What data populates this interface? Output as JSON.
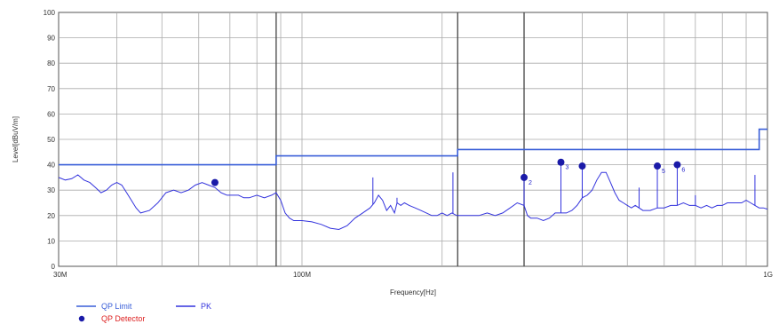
{
  "chart_data": {
    "type": "line",
    "title": "",
    "xlabel": "Frequency[Hz]",
    "ylabel": "Level[dBuV/m]",
    "x_scale": "log",
    "xlim": [
      30,
      1000
    ],
    "ylim": [
      0,
      100
    ],
    "grid": true,
    "y_ticks": [
      "0",
      "10",
      "20",
      "30",
      "40",
      "50",
      "60",
      "70",
      "80",
      "90",
      "100"
    ],
    "x_ticks": [
      {
        "value": 30,
        "label": "30M"
      },
      {
        "value": 100,
        "label": "100M"
      },
      {
        "value": 1000,
        "label": "1G"
      }
    ],
    "vertical_marks": [
      88,
      216,
      300
    ],
    "colors": {
      "limit": "#3a5fd8",
      "pk": "#3333dd",
      "qp": "#1a1aa8",
      "grid": "#aaaaaa",
      "legend_qp_text": "#dd2222"
    },
    "series": [
      {
        "name": "QP Limit",
        "kind": "step",
        "x": [
          30,
          88,
          88,
          216,
          216,
          960,
          960,
          1000
        ],
        "y": [
          40,
          40,
          43.5,
          43.5,
          46,
          46,
          54,
          54
        ]
      },
      {
        "name": "PK",
        "kind": "line",
        "x": [
          30,
          31,
          32,
          33,
          34,
          35,
          36,
          37,
          38,
          39,
          40,
          41,
          42,
          43,
          44,
          45,
          47,
          49,
          51,
          53,
          55,
          57,
          59,
          61,
          63,
          65,
          67,
          69,
          71,
          73,
          75,
          77,
          80,
          83,
          86,
          88,
          90,
          92,
          94,
          96,
          100,
          105,
          110,
          115,
          120,
          125,
          130,
          135,
          140,
          143,
          146,
          149,
          152,
          155,
          158,
          160,
          163,
          166,
          170,
          175,
          180,
          185,
          190,
          195,
          200,
          205,
          210,
          215,
          220,
          230,
          240,
          250,
          260,
          270,
          280,
          290,
          300,
          305,
          310,
          320,
          330,
          340,
          350,
          360,
          370,
          380,
          390,
          400,
          410,
          420,
          430,
          440,
          450,
          460,
          470,
          480,
          490,
          500,
          510,
          520,
          540,
          560,
          580,
          600,
          620,
          640,
          660,
          680,
          700,
          720,
          740,
          760,
          780,
          800,
          820,
          840,
          860,
          880,
          900,
          920,
          940,
          960,
          980,
          1000
        ],
        "y": [
          35,
          34,
          34.5,
          36,
          34,
          33,
          31,
          29,
          30,
          32,
          33,
          32,
          29,
          26,
          23,
          21,
          22,
          25,
          29,
          30,
          29,
          30,
          32,
          33,
          32,
          31,
          29,
          28,
          28,
          28,
          27,
          27,
          28,
          27,
          28,
          29,
          26,
          21,
          19,
          18,
          18,
          17.5,
          16.5,
          15,
          14.5,
          16,
          19,
          21,
          23,
          25,
          28,
          26,
          22,
          24,
          21,
          25,
          24,
          25,
          24,
          23,
          22,
          21,
          20,
          20,
          21,
          20,
          21,
          20,
          20,
          20,
          20,
          21,
          20,
          21,
          23,
          25,
          24,
          20,
          19,
          19,
          18,
          19,
          21,
          21,
          21,
          22,
          24,
          27,
          28,
          30,
          34,
          37,
          37,
          33,
          29,
          26,
          25,
          24,
          23,
          24,
          22,
          22,
          23,
          23,
          24,
          24,
          25,
          24,
          24,
          23,
          24,
          23,
          24,
          24,
          25,
          25,
          25,
          25,
          26,
          25,
          24,
          23,
          23,
          22.5
        ]
      },
      {
        "name": "QP Detector",
        "kind": "points",
        "x": [
          65,
          300,
          360,
          400,
          580,
          640
        ],
        "y": [
          33,
          35,
          41,
          39.5,
          39.5,
          40
        ],
        "labels": [
          "",
          "2",
          "3",
          "",
          "5",
          "6"
        ]
      }
    ],
    "spikes": [
      {
        "x": 142,
        "y": 35
      },
      {
        "x": 160,
        "y": 27
      },
      {
        "x": 211,
        "y": 37
      },
      {
        "x": 300,
        "y": 35
      },
      {
        "x": 360,
        "y": 40
      },
      {
        "x": 400,
        "y": 39
      },
      {
        "x": 530,
        "y": 31
      },
      {
        "x": 580,
        "y": 39
      },
      {
        "x": 640,
        "y": 39
      },
      {
        "x": 700,
        "y": 28
      },
      {
        "x": 940,
        "y": 36
      }
    ],
    "legend": {
      "placement": "bottom-left",
      "items": [
        {
          "label": "QP Limit",
          "kind": "line",
          "color": "#3a5fd8"
        },
        {
          "label": "PK",
          "kind": "line",
          "color": "#3333dd"
        },
        {
          "label": "QP Detector",
          "kind": "dot",
          "color": "#1a1aa8",
          "text_color": "#dd2222"
        }
      ]
    }
  }
}
